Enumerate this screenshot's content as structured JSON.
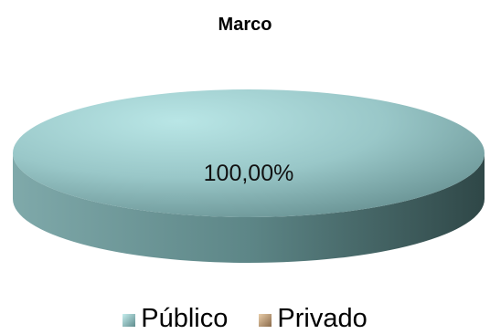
{
  "chart_data": {
    "type": "pie",
    "title": "Marco",
    "categories": [
      "Público",
      "Privado"
    ],
    "values": [
      100.0,
      0.0
    ],
    "data_labels": [
      "100,00%"
    ],
    "legend_position": "bottom",
    "three_d": true,
    "colors": {
      "Público": "#9fd3d3",
      "Privado": "#c8a27a"
    }
  }
}
